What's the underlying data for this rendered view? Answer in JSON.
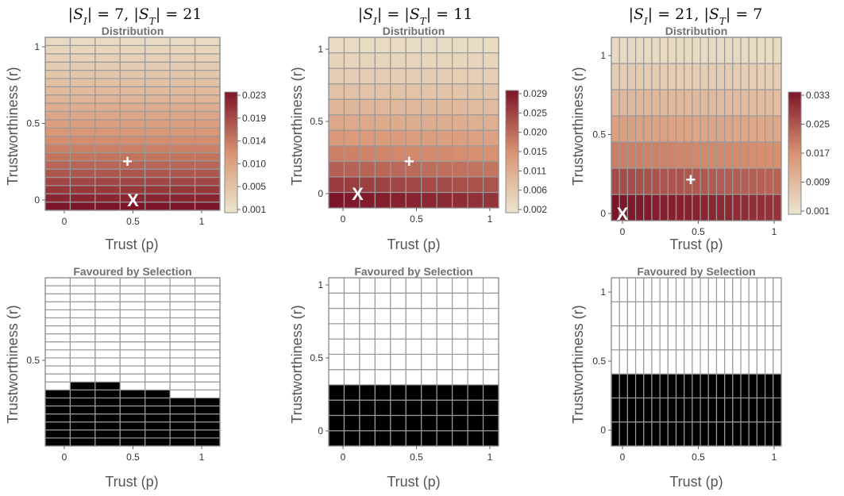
{
  "chart_data": [
    {
      "type": "heatmap",
      "panel_title": "Distribution",
      "header": "|S_I| = 7, |S_T| = 21",
      "xlabel": "Trust (p)",
      "ylabel": "Trustworthiness (r)",
      "xticks": [
        "0",
        "0.5",
        "1"
      ],
      "yticks": [
        "0",
        "0.5",
        "1"
      ],
      "grid": {
        "columns": 7,
        "rows": 21
      },
      "colorbar": {
        "min": 0.001,
        "max": 0.023,
        "ticks": [
          "0.023",
          "0.019",
          "0.014",
          "0.010",
          "0.005",
          "0.001"
        ]
      },
      "row_intensity_bottom_to_top": [
        1.0,
        0.93,
        0.86,
        0.8,
        0.74,
        0.68,
        0.62,
        0.57,
        0.52,
        0.47,
        0.42,
        0.38,
        0.34,
        0.3,
        0.26,
        0.22,
        0.19,
        0.16,
        0.13,
        0.1,
        0.07
      ],
      "plus_marker": {
        "p": 0.46,
        "r": 0.26,
        "label": "+"
      },
      "x_marker": {
        "p": 0.5,
        "r": 0.0,
        "label": "X"
      }
    },
    {
      "type": "heatmap",
      "panel_title": "Distribution",
      "header": "|S_I| = |S_T| = 11",
      "xlabel": "Trust (p)",
      "ylabel": "Trustworthiness (r)",
      "xticks": [
        "0",
        "0.5",
        "1"
      ],
      "yticks": [
        "0",
        "0.5",
        "1"
      ],
      "grid": {
        "columns": 11,
        "rows": 11
      },
      "colorbar": {
        "min": 0.002,
        "max": 0.029,
        "ticks": [
          "0.029",
          "0.025",
          "0.020",
          "0.015",
          "0.011",
          "0.006",
          "0.002"
        ]
      },
      "row_intensity_bottom_to_top": [
        1.0,
        0.85,
        0.7,
        0.57,
        0.46,
        0.37,
        0.29,
        0.22,
        0.16,
        0.11,
        0.07
      ],
      "plus_marker": {
        "p": 0.45,
        "r": 0.23,
        "label": "+"
      },
      "x_marker": {
        "p": 0.1,
        "r": 0.0,
        "label": "X"
      }
    },
    {
      "type": "heatmap",
      "panel_title": "Distribution",
      "header": "|S_I| = 21, |S_T| = 7",
      "xlabel": "Trust (p)",
      "ylabel": "Trustworthiness (r)",
      "xticks": [
        "0",
        "0.5",
        "1"
      ],
      "yticks": [
        "0",
        "0.5",
        "1"
      ],
      "grid": {
        "columns": 21,
        "rows": 7
      },
      "colorbar": {
        "min": 0.001,
        "max": 0.033,
        "ticks": [
          "0.033",
          "0.025",
          "0.017",
          "0.009",
          "0.001"
        ]
      },
      "row_intensity_bottom_to_top": [
        1.0,
        0.78,
        0.58,
        0.42,
        0.28,
        0.16,
        0.07
      ],
      "plus_marker": {
        "p": 0.45,
        "r": 0.22,
        "label": "+"
      },
      "x_marker": {
        "p": 0.0,
        "r": 0.0,
        "label": "X"
      }
    },
    {
      "type": "heatmap",
      "panel_title": "Favoured by Selection",
      "xlabel": "Trust (p)",
      "ylabel": "Trustworthiness (r)",
      "xticks": [
        "0",
        "0.5",
        "1"
      ],
      "yticks": [
        "0.5"
      ],
      "grid": {
        "columns": 7,
        "rows": 21
      },
      "favoured_rows_per_column": [
        7,
        8,
        8,
        7,
        7,
        6,
        6
      ]
    },
    {
      "type": "heatmap",
      "panel_title": "Favoured by Selection",
      "xlabel": "Trust (p)",
      "ylabel": "Trustworthiness (r)",
      "xticks": [
        "0",
        "0.5",
        "1"
      ],
      "yticks": [
        "0",
        "0.5",
        "1"
      ],
      "grid": {
        "columns": 11,
        "rows": 11
      },
      "favoured_rows_per_column": [
        4,
        4,
        4,
        4,
        4,
        4,
        4,
        4,
        4,
        4,
        4
      ]
    },
    {
      "type": "heatmap",
      "panel_title": "Favoured by Selection",
      "xlabel": "Trust (p)",
      "ylabel": "Trustworthiness (r)",
      "xticks": [
        "0",
        "0.5",
        "1"
      ],
      "yticks": [
        "0",
        "0.5",
        "1"
      ],
      "grid": {
        "columns": 21,
        "rows": 7
      },
      "favoured_rows_per_column": [
        3,
        3,
        3,
        3,
        3,
        3,
        3,
        3,
        3,
        3,
        3,
        3,
        3,
        3,
        3,
        3,
        3,
        3,
        3,
        3,
        3
      ]
    }
  ],
  "colors": {
    "low": "#eae6cf",
    "mid": "#d99271",
    "high": "#7d1528",
    "grid_line": "#9a9a9a",
    "favoured": "#000000",
    "unfavoured": "#ffffff"
  }
}
